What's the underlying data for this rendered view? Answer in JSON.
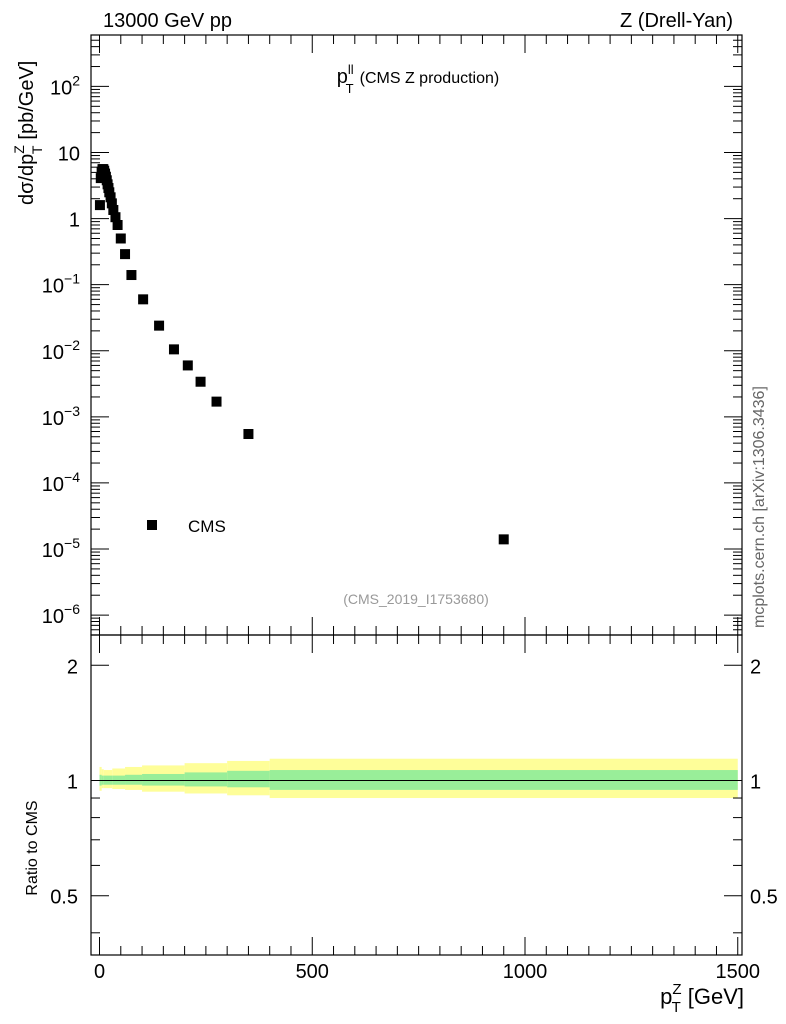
{
  "header": {
    "left": "13000 GeV pp",
    "right": "Z (Drell-Yan)"
  },
  "side_label": "mcplots.cern.ch [arXiv:1306.3436]",
  "chart_data": [
    {
      "type": "scatter",
      "panel": "main",
      "title_main": "p",
      "title_sup": "ll",
      "title_sub": "T",
      "title_rest": "(CMS Z production)",
      "ylabel": {
        "main": "dσ/dp",
        "sup": "Z",
        "sub": "T",
        "rest": "[pb/GeV]"
      },
      "yscale": "log",
      "ylim": [
        5e-07,
        600
      ],
      "xlim": [
        -20,
        1510
      ],
      "ytick_labels": [
        {
          "value": 100,
          "base": "10",
          "exp": "2"
        },
        {
          "value": 10,
          "base": "10",
          "exp": ""
        },
        {
          "value": 1,
          "base": "1",
          "exp": ""
        },
        {
          "value": 0.1,
          "base": "10",
          "exp": "−1"
        },
        {
          "value": 0.01,
          "base": "10",
          "exp": "−2"
        },
        {
          "value": 0.001,
          "base": "10",
          "exp": "−3"
        },
        {
          "value": 0.0001,
          "base": "10",
          "exp": "−4"
        },
        {
          "value": 1e-05,
          "base": "10",
          "exp": "−5"
        },
        {
          "value": 1e-06,
          "base": "10",
          "exp": "−6"
        }
      ],
      "legend": {
        "label": "CMS",
        "position": "lower-left"
      },
      "watermark": "(CMS_2019_I1753680)",
      "series": [
        {
          "name": "CMS",
          "x": [
            1,
            3,
            5,
            7,
            9,
            11,
            13,
            15,
            17,
            19,
            21,
            23,
            26,
            29,
            32.5,
            37.5,
            42.5,
            50,
            60,
            75,
            102.5,
            140,
            175,
            207.5,
            237.5,
            275,
            350,
            950
          ],
          "y": [
            1.6,
            4.1,
            5.1,
            5.6,
            5.6,
            5.3,
            4.8,
            4.3,
            3.8,
            3.3,
            2.9,
            2.5,
            2.1,
            1.7,
            1.35,
            1.05,
            0.8,
            0.5,
            0.29,
            0.14,
            0.06,
            0.024,
            0.0105,
            0.006,
            0.0034,
            0.0017,
            0.00055,
            1.4e-05
          ]
        }
      ]
    },
    {
      "type": "area",
      "panel": "ratio",
      "ylabel": "Ratio to CMS",
      "yscale": "log",
      "ylim": [
        0.35,
        2.4
      ],
      "xlim": [
        -20,
        1510
      ],
      "xlabel": {
        "main": "p",
        "sup": "Z",
        "sub": "T",
        "rest": "[GeV]"
      },
      "xtick_labels": [
        {
          "value": 0,
          "label": "0"
        },
        {
          "value": 500,
          "label": "500"
        },
        {
          "value": 1000,
          "label": "1000"
        },
        {
          "value": 1500,
          "label": "1500"
        }
      ],
      "ytick_labels": [
        {
          "value": 2,
          "label": "2"
        },
        {
          "value": 1,
          "label": "1"
        },
        {
          "value": 0.5,
          "label": "0.5"
        }
      ],
      "bands": {
        "edges": [
          0,
          5,
          10,
          30,
          60,
          100,
          200,
          300,
          400,
          1500
        ],
        "inner_low": [
          0.97,
          0.975,
          0.975,
          0.975,
          0.975,
          0.97,
          0.965,
          0.96,
          0.945
        ],
        "inner_high": [
          1.035,
          1.03,
          1.03,
          1.03,
          1.035,
          1.04,
          1.05,
          1.06,
          1.065
        ],
        "outer_low": [
          0.94,
          0.955,
          0.955,
          0.95,
          0.945,
          0.935,
          0.925,
          0.915,
          0.9
        ],
        "outer_high": [
          1.085,
          1.07,
          1.065,
          1.075,
          1.085,
          1.095,
          1.11,
          1.125,
          1.14
        ],
        "inner_color": "#99ee99",
        "outer_color": "#fefe99"
      },
      "reference": 1
    }
  ]
}
